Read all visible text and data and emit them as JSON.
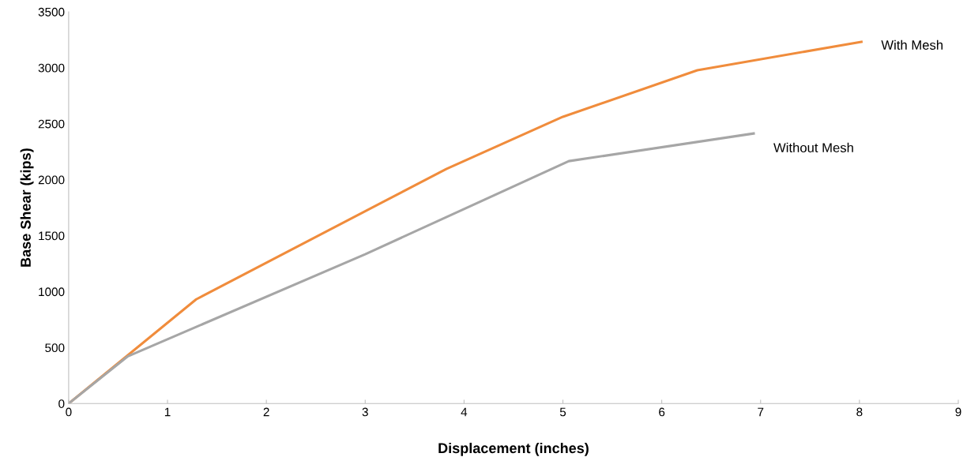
{
  "chart_data": {
    "type": "line",
    "xlabel": "Displacement (inches)",
    "ylabel": "Base Shear (kips)",
    "xlim": [
      0,
      9
    ],
    "xticks": [
      0,
      1,
      2,
      3,
      4,
      5,
      6,
      7,
      8,
      9
    ],
    "ylim": [
      0,
      3500
    ],
    "yticks": [
      0,
      500,
      1000,
      1500,
      2000,
      2500,
      3000,
      3500
    ],
    "grid": false,
    "legend": false,
    "marker": "none",
    "line_style": "solid",
    "series": [
      {
        "name": "With Mesh",
        "color": "#f08c3c",
        "x": [
          0,
          1.29,
          3.82,
          5.0,
          6.36,
          8.02
        ],
        "values": [
          0,
          931,
          2096,
          2562,
          2978,
          3232
        ]
      },
      {
        "name": "Without Mesh",
        "color": "#a6a6a6",
        "x": [
          0,
          0.6,
          3.0,
          5.06,
          6.93
        ],
        "values": [
          0,
          423,
          1334,
          2166,
          2413
        ]
      }
    ]
  }
}
